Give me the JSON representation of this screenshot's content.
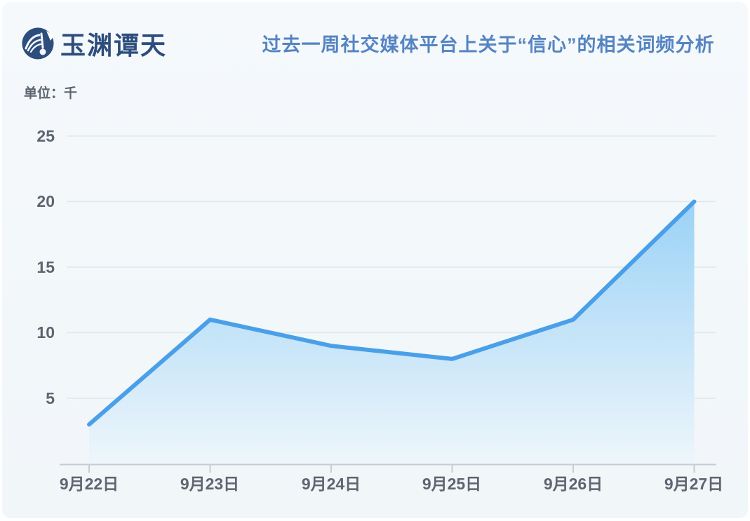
{
  "header": {
    "logo_text": "玉渊谭天",
    "title": "过去一周社交媒体平台上关于“信心”的相关词频分析"
  },
  "unit_label": "单位：千",
  "chart_data": {
    "type": "area",
    "title": "过去一周社交媒体平台上关于“信心”的相关词频分析",
    "categories": [
      "9月22日",
      "9月23日",
      "9月24日",
      "9月25日",
      "9月26日",
      "9月27日"
    ],
    "values": [
      3,
      11,
      9,
      8,
      11,
      20
    ],
    "xlabel": "",
    "ylabel": "单位：千",
    "yticks": [
      5,
      10,
      15,
      20,
      25
    ],
    "ylim": [
      0,
      27
    ],
    "grid": true,
    "legend_position": "none",
    "colors": {
      "line": "#4aa0e8",
      "area_top": "#9bd2f6",
      "area_bottom": "#eef6fb",
      "title_text": "#5584c2",
      "axis_text": "#5d6570",
      "gridline": "#e0e7ec",
      "axis_line": "#c6ccd4",
      "logo": "#2d4d7c",
      "panel_background": "#f2f7fa"
    }
  }
}
